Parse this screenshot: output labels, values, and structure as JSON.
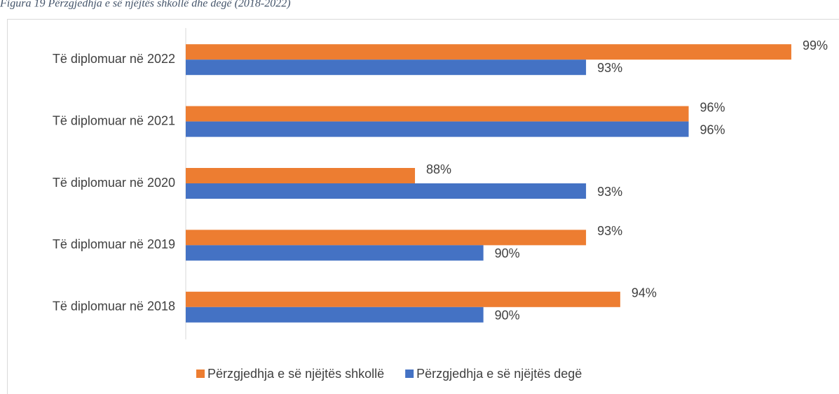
{
  "chart_data": {
    "type": "bar",
    "orientation": "horizontal",
    "title": "Figura 19 Përzgjedhja e së njëjtës shkollë dhe degë (2018-2022)",
    "categories": [
      "Të diplomuar në 2022",
      "Të diplomuar në 2021",
      "Të diplomuar në 2020",
      "Të diplomuar në 2019",
      "Të diplomuar në 2018"
    ],
    "series": [
      {
        "name": "Përzgjedhja e së njëjtës shkollë",
        "color": "#ed7d31",
        "values": [
          99,
          96,
          88,
          93,
          94
        ],
        "value_labels": [
          "99%",
          "96%",
          "88%",
          "93%",
          "94%"
        ]
      },
      {
        "name": "Përzgjedhja e së njëjtës degë",
        "color": "#4472c4",
        "values": [
          93,
          96,
          93,
          90,
          90
        ],
        "value_labels": [
          "93%",
          "96%",
          "93%",
          "90%",
          "90%"
        ]
      }
    ],
    "xlim": [
      81.3,
      99.8
    ],
    "legend": "bottom"
  }
}
